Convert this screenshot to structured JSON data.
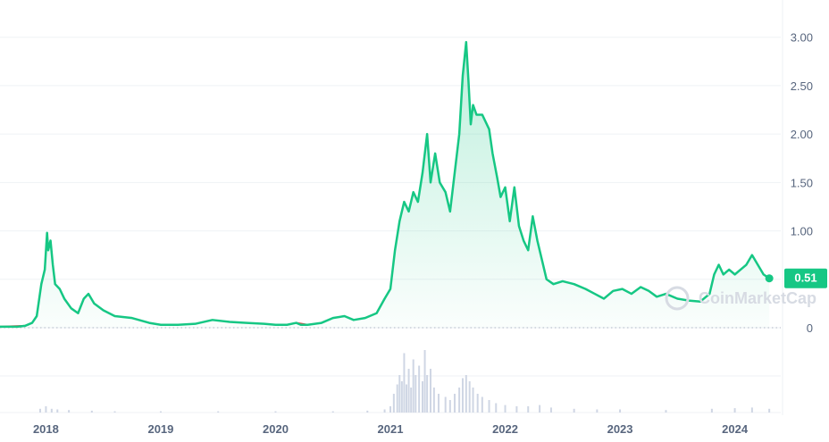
{
  "chart_data": {
    "type": "area",
    "title": "",
    "xlabel": "",
    "ylabel": "",
    "xlim": [
      2017.6,
      2024.4
    ],
    "ylim": [
      0,
      3.2
    ],
    "x_ticks": [
      "2018",
      "2019",
      "2020",
      "2021",
      "2022",
      "2023",
      "2024"
    ],
    "x_tick_values": [
      2018,
      2019,
      2020,
      2021,
      2022,
      2023,
      2024
    ],
    "y_ticks": [
      "0",
      "1.00",
      "1.50",
      "2.00",
      "2.50",
      "3.00"
    ],
    "y_tick_values": [
      0,
      1,
      1.5,
      2,
      2.5,
      3
    ],
    "grid": true,
    "current_price": "0.51",
    "watermark": "CoinMarketCap",
    "colors": {
      "line": "#16c784",
      "area_top": "#16c784",
      "low_segment": "#ea3943",
      "volume": "#cfd6e4",
      "price_badge": "#16c784",
      "tick_text": "#58667e",
      "grid": "#eff2f5"
    },
    "series": [
      {
        "values": [
          [
            2017.6,
            0.01
          ],
          [
            2017.75,
            0.01
          ],
          [
            2017.82,
            0.02
          ],
          [
            2017.88,
            0.05
          ],
          [
            2017.92,
            0.12
          ],
          [
            2017.96,
            0.45
          ],
          [
            2017.99,
            0.6
          ],
          [
            2018.01,
            0.98
          ],
          [
            2018.02,
            0.8
          ],
          [
            2018.04,
            0.9
          ],
          [
            2018.06,
            0.65
          ],
          [
            2018.08,
            0.45
          ],
          [
            2018.12,
            0.4
          ],
          [
            2018.16,
            0.3
          ],
          [
            2018.22,
            0.2
          ],
          [
            2018.28,
            0.15
          ],
          [
            2018.33,
            0.3
          ],
          [
            2018.37,
            0.35
          ],
          [
            2018.42,
            0.25
          ],
          [
            2018.5,
            0.18
          ],
          [
            2018.6,
            0.12
          ],
          [
            2018.75,
            0.1
          ],
          [
            2018.9,
            0.05
          ],
          [
            2019.0,
            0.03
          ],
          [
            2019.15,
            0.03
          ],
          [
            2019.3,
            0.04
          ],
          [
            2019.45,
            0.08
          ],
          [
            2019.6,
            0.06
          ],
          [
            2019.75,
            0.05
          ],
          [
            2019.9,
            0.04
          ],
          [
            2020.0,
            0.03
          ],
          [
            2020.1,
            0.03
          ],
          [
            2020.18,
            0.05
          ],
          [
            2020.22,
            0.03
          ],
          [
            2020.28,
            0.03
          ],
          [
            2020.4,
            0.05
          ],
          [
            2020.5,
            0.1
          ],
          [
            2020.6,
            0.12
          ],
          [
            2020.68,
            0.08
          ],
          [
            2020.78,
            0.1
          ],
          [
            2020.88,
            0.15
          ],
          [
            2020.95,
            0.3
          ],
          [
            2021.0,
            0.4
          ],
          [
            2021.04,
            0.8
          ],
          [
            2021.08,
            1.1
          ],
          [
            2021.12,
            1.3
          ],
          [
            2021.16,
            1.2
          ],
          [
            2021.2,
            1.4
          ],
          [
            2021.24,
            1.3
          ],
          [
            2021.28,
            1.6
          ],
          [
            2021.32,
            2.0
          ],
          [
            2021.35,
            1.5
          ],
          [
            2021.39,
            1.8
          ],
          [
            2021.43,
            1.5
          ],
          [
            2021.48,
            1.4
          ],
          [
            2021.52,
            1.2
          ],
          [
            2021.56,
            1.6
          ],
          [
            2021.6,
            2.0
          ],
          [
            2021.63,
            2.6
          ],
          [
            2021.66,
            2.95
          ],
          [
            2021.68,
            2.55
          ],
          [
            2021.7,
            2.1
          ],
          [
            2021.72,
            2.3
          ],
          [
            2021.75,
            2.2
          ],
          [
            2021.8,
            2.2
          ],
          [
            2021.86,
            2.05
          ],
          [
            2021.89,
            1.8
          ],
          [
            2021.93,
            1.55
          ],
          [
            2021.96,
            1.35
          ],
          [
            2022.0,
            1.45
          ],
          [
            2022.04,
            1.1
          ],
          [
            2022.08,
            1.45
          ],
          [
            2022.12,
            1.05
          ],
          [
            2022.16,
            0.9
          ],
          [
            2022.2,
            0.8
          ],
          [
            2022.24,
            1.15
          ],
          [
            2022.28,
            0.9
          ],
          [
            2022.32,
            0.7
          ],
          [
            2022.36,
            0.5
          ],
          [
            2022.42,
            0.45
          ],
          [
            2022.5,
            0.48
          ],
          [
            2022.6,
            0.45
          ],
          [
            2022.7,
            0.4
          ],
          [
            2022.78,
            0.35
          ],
          [
            2022.86,
            0.3
          ],
          [
            2022.94,
            0.38
          ],
          [
            2023.02,
            0.4
          ],
          [
            2023.1,
            0.35
          ],
          [
            2023.18,
            0.42
          ],
          [
            2023.25,
            0.38
          ],
          [
            2023.32,
            0.32
          ],
          [
            2023.4,
            0.35
          ],
          [
            2023.5,
            0.3
          ],
          [
            2023.6,
            0.28
          ],
          [
            2023.7,
            0.27
          ],
          [
            2023.78,
            0.35
          ],
          [
            2023.82,
            0.55
          ],
          [
            2023.86,
            0.65
          ],
          [
            2023.9,
            0.55
          ],
          [
            2023.95,
            0.6
          ],
          [
            2024.0,
            0.55
          ],
          [
            2024.05,
            0.6
          ],
          [
            2024.1,
            0.65
          ],
          [
            2024.15,
            0.75
          ],
          [
            2024.2,
            0.65
          ],
          [
            2024.25,
            0.55
          ],
          [
            2024.3,
            0.51
          ]
        ]
      }
    ],
    "volume": {
      "values": [
        [
          2017.95,
          0.06
        ],
        [
          2018.0,
          0.1
        ],
        [
          2018.05,
          0.06
        ],
        [
          2018.1,
          0.05
        ],
        [
          2018.2,
          0.04
        ],
        [
          2018.4,
          0.03
        ],
        [
          2018.6,
          0.02
        ],
        [
          2019.0,
          0.02
        ],
        [
          2019.5,
          0.02
        ],
        [
          2020.0,
          0.02
        ],
        [
          2020.5,
          0.02
        ],
        [
          2020.8,
          0.03
        ],
        [
          2020.95,
          0.05
        ],
        [
          2021.0,
          0.1
        ],
        [
          2021.03,
          0.3
        ],
        [
          2021.06,
          0.45
        ],
        [
          2021.08,
          0.6
        ],
        [
          2021.1,
          0.5
        ],
        [
          2021.12,
          0.95
        ],
        [
          2021.14,
          0.45
        ],
        [
          2021.16,
          0.7
        ],
        [
          2021.18,
          0.4
        ],
        [
          2021.2,
          0.85
        ],
        [
          2021.22,
          0.6
        ],
        [
          2021.25,
          0.75
        ],
        [
          2021.28,
          0.5
        ],
        [
          2021.3,
          1.0
        ],
        [
          2021.32,
          0.6
        ],
        [
          2021.35,
          0.7
        ],
        [
          2021.38,
          0.4
        ],
        [
          2021.42,
          0.3
        ],
        [
          2021.48,
          0.25
        ],
        [
          2021.52,
          0.2
        ],
        [
          2021.56,
          0.3
        ],
        [
          2021.6,
          0.4
        ],
        [
          2021.63,
          0.55
        ],
        [
          2021.66,
          0.6
        ],
        [
          2021.69,
          0.5
        ],
        [
          2021.72,
          0.4
        ],
        [
          2021.76,
          0.3
        ],
        [
          2021.8,
          0.25
        ],
        [
          2021.86,
          0.2
        ],
        [
          2021.92,
          0.15
        ],
        [
          2022.0,
          0.12
        ],
        [
          2022.1,
          0.1
        ],
        [
          2022.2,
          0.1
        ],
        [
          2022.3,
          0.12
        ],
        [
          2022.4,
          0.08
        ],
        [
          2022.6,
          0.06
        ],
        [
          2022.8,
          0.05
        ],
        [
          2023.0,
          0.05
        ],
        [
          2023.4,
          0.04
        ],
        [
          2023.8,
          0.06
        ],
        [
          2024.0,
          0.07
        ],
        [
          2024.15,
          0.08
        ],
        [
          2024.3,
          0.06
        ]
      ]
    }
  }
}
